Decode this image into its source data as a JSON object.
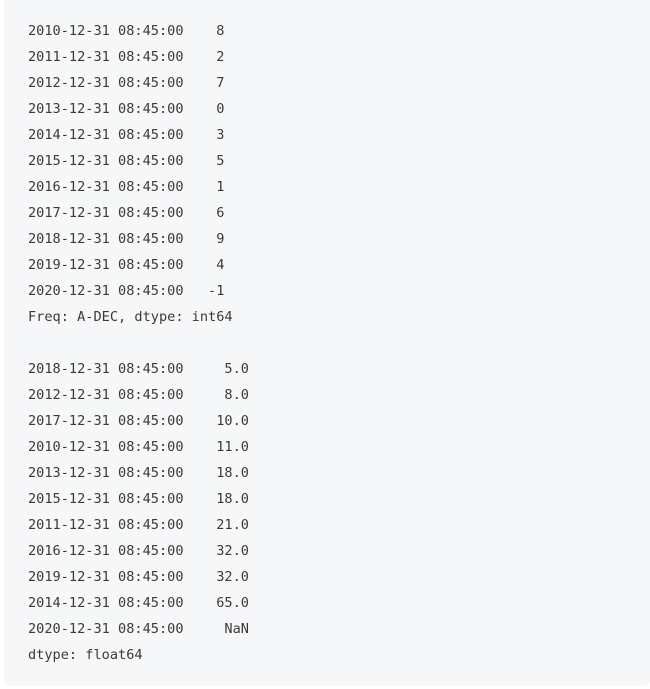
{
  "block1": {
    "rows": [
      "2010-12-31 08:45:00    8",
      "2011-12-31 08:45:00    2",
      "2012-12-31 08:45:00    7",
      "2013-12-31 08:45:00    0",
      "2014-12-31 08:45:00    3",
      "2015-12-31 08:45:00    5",
      "2016-12-31 08:45:00    1",
      "2017-12-31 08:45:00    6",
      "2018-12-31 08:45:00    9",
      "2019-12-31 08:45:00    4",
      "2020-12-31 08:45:00   -1"
    ],
    "footer": "Freq: A-DEC, dtype: int64"
  },
  "block2": {
    "rows": [
      "2018-12-31 08:45:00     5.0",
      "2012-12-31 08:45:00     8.0",
      "2017-12-31 08:45:00    10.0",
      "2010-12-31 08:45:00    11.0",
      "2013-12-31 08:45:00    18.0",
      "2015-12-31 08:45:00    18.0",
      "2011-12-31 08:45:00    21.0",
      "2016-12-31 08:45:00    32.0",
      "2019-12-31 08:45:00    32.0",
      "2014-12-31 08:45:00    65.0",
      "2020-12-31 08:45:00     NaN"
    ],
    "footer": "dtype: float64"
  }
}
